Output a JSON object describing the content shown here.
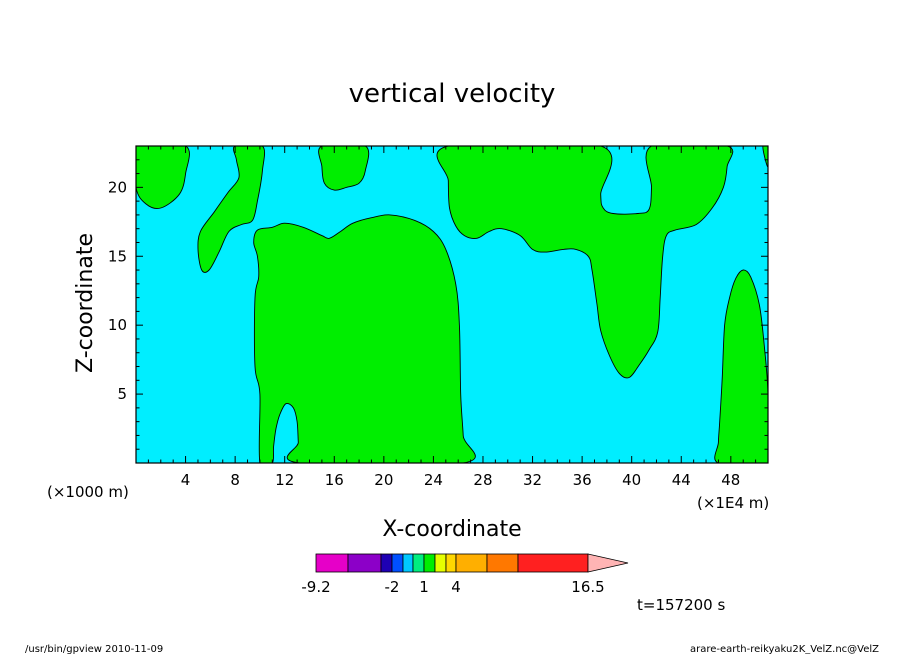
{
  "chart_data": {
    "type": "contour",
    "title": "vertical velocity",
    "xlabel": "X-coordinate",
    "ylabel": "Z-coordinate",
    "x_unit_left": "(×1000 m)",
    "x_unit_right": "(×1E4 m)",
    "xlim": [
      0,
      51
    ],
    "ylim": [
      0,
      23
    ],
    "xticks": [
      4,
      8,
      12,
      16,
      20,
      24,
      28,
      32,
      36,
      40,
      44,
      48
    ],
    "yticks": [
      5,
      10,
      15,
      20
    ],
    "background_level_color": "#00eeff",
    "positive_level_color": "#00ee00",
    "regions": [
      {
        "name": "top-left",
        "points": [
          [
            0,
            23
          ],
          [
            4,
            23
          ],
          [
            4,
            21
          ],
          [
            3.5,
            19.5
          ],
          [
            2,
            18.5
          ],
          [
            0.8,
            18.8
          ],
          [
            0,
            20
          ]
        ]
      },
      {
        "name": "left-upper-lobe",
        "points": [
          [
            8,
            23
          ],
          [
            10.2,
            23
          ],
          [
            10.2,
            21.2
          ],
          [
            9.8,
            19
          ],
          [
            9.4,
            17.6
          ],
          [
            8.5,
            17.3
          ],
          [
            7.5,
            16.8
          ],
          [
            6.7,
            15.3
          ],
          [
            5.9,
            14
          ],
          [
            5.3,
            14
          ],
          [
            5,
            15.5
          ],
          [
            5.2,
            16.8
          ],
          [
            6.3,
            18.2
          ],
          [
            7.4,
            19.6
          ],
          [
            8.3,
            20.7
          ],
          [
            8.1,
            22
          ]
        ]
      },
      {
        "name": "central-column",
        "points": [
          [
            10,
            0
          ],
          [
            10,
            5
          ],
          [
            9.6,
            7
          ],
          [
            9.6,
            12
          ],
          [
            9.9,
            13.5
          ],
          [
            9.8,
            15
          ],
          [
            9.5,
            16
          ],
          [
            9.8,
            16.9
          ],
          [
            11,
            17.1
          ],
          [
            12,
            17.4
          ],
          [
            13.5,
            17.1
          ],
          [
            15,
            16.5
          ],
          [
            15.6,
            16.3
          ],
          [
            16.5,
            16.8
          ],
          [
            17.5,
            17.4
          ],
          [
            19,
            17.8
          ],
          [
            20.5,
            18
          ],
          [
            22.5,
            17.6
          ],
          [
            24,
            16.8
          ],
          [
            25,
            15.5
          ],
          [
            25.8,
            13
          ],
          [
            26.1,
            10
          ],
          [
            26.2,
            5
          ],
          [
            26.4,
            2
          ],
          [
            26.4,
            0
          ],
          [
            13.2,
            0
          ],
          [
            13.1,
            1.5
          ],
          [
            13,
            3
          ],
          [
            12.7,
            4
          ],
          [
            12.1,
            4.3
          ],
          [
            11.6,
            3.5
          ],
          [
            11.3,
            2.5
          ],
          [
            11.1,
            1.2
          ],
          [
            11,
            0
          ]
        ]
      },
      {
        "name": "small-top-bump",
        "points": [
          [
            15,
            23
          ],
          [
            18.5,
            23
          ],
          [
            18.5,
            21.2
          ],
          [
            18,
            20.3
          ],
          [
            17,
            20
          ],
          [
            16,
            19.8
          ],
          [
            15.2,
            20.3
          ],
          [
            15,
            21.5
          ]
        ]
      },
      {
        "name": "right-top-area",
        "points": [
          [
            25.2,
            23
          ],
          [
            37.5,
            23
          ],
          [
            37.5,
            19.5
          ],
          [
            37.7,
            18.5
          ],
          [
            38.5,
            18.1
          ],
          [
            40.5,
            18.1
          ],
          [
            41.4,
            18.4
          ],
          [
            41.6,
            20
          ],
          [
            41.6,
            23
          ],
          [
            47.7,
            23
          ],
          [
            47.7,
            21.5
          ],
          [
            47.4,
            20
          ],
          [
            46.5,
            18.5
          ],
          [
            45.2,
            17.3
          ],
          [
            43.5,
            16.9
          ],
          [
            42.8,
            16.5
          ],
          [
            42.5,
            15
          ],
          [
            42.3,
            12
          ],
          [
            42.1,
            9.5
          ],
          [
            41.4,
            8.2
          ],
          [
            40.6,
            7.1
          ],
          [
            39.8,
            6.2
          ],
          [
            39,
            6.5
          ],
          [
            38.2,
            7.8
          ],
          [
            37.5,
            9.6
          ],
          [
            37.2,
            11.5
          ],
          [
            36.8,
            14
          ],
          [
            36.5,
            15
          ],
          [
            35.5,
            15.5
          ],
          [
            34.5,
            15.5
          ],
          [
            33,
            15.3
          ],
          [
            32,
            15.5
          ],
          [
            31,
            16.5
          ],
          [
            29.5,
            17
          ],
          [
            28.5,
            16.8
          ],
          [
            27.5,
            16.3
          ],
          [
            26.5,
            16.5
          ],
          [
            25.8,
            17.2
          ],
          [
            25.3,
            18.5
          ],
          [
            25.2,
            20.5
          ]
        ]
      },
      {
        "name": "far-right-top-sliver",
        "points": [
          [
            50.6,
            23
          ],
          [
            51,
            23
          ],
          [
            51,
            21.5
          ],
          [
            50.7,
            22.3
          ]
        ]
      },
      {
        "name": "far-right-lower-lobe",
        "points": [
          [
            47,
            0
          ],
          [
            51,
            0
          ],
          [
            51,
            5
          ],
          [
            50.7,
            8.5
          ],
          [
            50.3,
            11.5
          ],
          [
            49.6,
            13.5
          ],
          [
            49,
            14
          ],
          [
            48.4,
            13.4
          ],
          [
            47.9,
            12
          ],
          [
            47.5,
            10
          ],
          [
            47.3,
            6
          ],
          [
            47.1,
            3
          ],
          [
            47,
            1.5
          ]
        ]
      }
    ],
    "colorbar": {
      "colors": [
        "#e600c8",
        "#8c00c8",
        "#1e00b4",
        "#0050ff",
        "#00c8ff",
        "#00ee80",
        "#00ee00",
        "#e6ff00",
        "#ffd700",
        "#ffaf00",
        "#ff7800",
        "#ff2020",
        "#ff7878",
        "#ffb4b4"
      ],
      "tick_labels": [
        "-9.2",
        "-2",
        "1",
        "4",
        "16.5"
      ]
    },
    "annotation": "t=157200 s"
  },
  "footer": {
    "left": "/usr/bin/gpview   2010-11-09",
    "right": "arare-earth-reikyaku2K_VelZ.nc@VelZ"
  }
}
